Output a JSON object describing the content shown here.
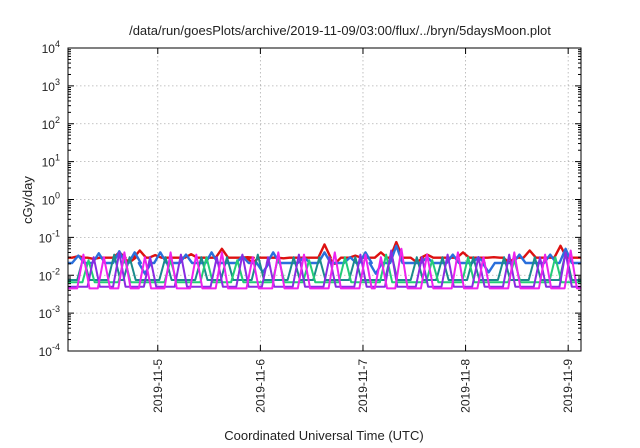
{
  "chart_data": {
    "type": "line",
    "title": "/data/run/goesPlots/archive/2019-11-09/03:00/flux/../bryn/5daysMoon.plot",
    "xlabel": "Coordinated Universal Time (UTC)",
    "ylabel": "cGy/day",
    "yscale": "log",
    "ylim": [
      0.0001,
      10000
    ],
    "yticks": [
      {
        "base": "10",
        "exp": "-4",
        "value": 0.0001
      },
      {
        "base": "10",
        "exp": "-3",
        "value": 0.001
      },
      {
        "base": "10",
        "exp": "-2",
        "value": 0.01
      },
      {
        "base": "10",
        "exp": "-1",
        "value": 0.1
      },
      {
        "base": "10",
        "exp": "0",
        "value": 1
      },
      {
        "base": "10",
        "exp": "1",
        "value": 10
      },
      {
        "base": "10",
        "exp": "2",
        "value": 100
      },
      {
        "base": "10",
        "exp": "3",
        "value": 1000
      },
      {
        "base": "10",
        "exp": "4",
        "value": 10000
      }
    ],
    "xlim": [
      "2019-11-04T03:00",
      "2019-11-09T03:00"
    ],
    "xticks": [
      {
        "label": "2019-11-5",
        "date": "2019-11-05T00:00"
      },
      {
        "label": "2019-11-6",
        "date": "2019-11-06T00:00"
      },
      {
        "label": "2019-11-7",
        "date": "2019-11-07T00:00"
      },
      {
        "label": "2019-11-8",
        "date": "2019-11-08T00:00"
      },
      {
        "label": "2019-11-9",
        "date": "2019-11-09T00:00"
      }
    ],
    "grid": true,
    "legend": "none",
    "series": [
      {
        "color": "#dd1111",
        "baseline": 0.029,
        "spikes": [
          [
            0.02,
            0.032
          ],
          [
            0.05,
            0.027
          ],
          [
            0.1,
            0.04
          ],
          [
            0.14,
            0.045
          ],
          [
            0.17,
            0.034
          ],
          [
            0.24,
            0.036
          ],
          [
            0.3,
            0.05
          ],
          [
            0.35,
            0.03
          ],
          [
            0.42,
            0.028
          ],
          [
            0.5,
            0.065
          ],
          [
            0.56,
            0.033
          ],
          [
            0.61,
            0.04
          ],
          [
            0.64,
            0.075
          ],
          [
            0.7,
            0.035
          ],
          [
            0.77,
            0.04
          ],
          [
            0.83,
            0.03
          ],
          [
            0.9,
            0.045
          ],
          [
            0.96,
            0.06
          ]
        ],
        "dips": [
          [
            0.12,
            0.022
          ],
          [
            0.36,
            0.021
          ],
          [
            0.52,
            0.02
          ],
          [
            0.68,
            0.022
          ],
          [
            0.86,
            0.022
          ]
        ]
      },
      {
        "color": "#2a6fdb",
        "baseline": 0.021,
        "spikes": [
          [
            0.02,
            0.033
          ],
          [
            0.06,
            0.038
          ],
          [
            0.1,
            0.043
          ],
          [
            0.13,
            0.04
          ],
          [
            0.18,
            0.04
          ],
          [
            0.23,
            0.035
          ],
          [
            0.28,
            0.04
          ],
          [
            0.34,
            0.032
          ],
          [
            0.4,
            0.04
          ],
          [
            0.46,
            0.03
          ],
          [
            0.5,
            0.04
          ],
          [
            0.55,
            0.03
          ],
          [
            0.58,
            0.04
          ],
          [
            0.64,
            0.06
          ],
          [
            0.7,
            0.03
          ],
          [
            0.75,
            0.035
          ],
          [
            0.8,
            0.03
          ],
          [
            0.88,
            0.035
          ],
          [
            0.94,
            0.035
          ],
          [
            0.97,
            0.05
          ]
        ],
        "dips": [
          [
            0.15,
            0.011
          ],
          [
            0.38,
            0.012
          ],
          [
            0.6,
            0.011
          ],
          [
            0.82,
            0.012
          ]
        ]
      },
      {
        "color": "#1a8b8b",
        "baseline": 0.0075,
        "spikes": [
          [
            0.03,
            0.03
          ],
          [
            0.09,
            0.035
          ],
          [
            0.12,
            0.03
          ],
          [
            0.19,
            0.03
          ],
          [
            0.26,
            0.03
          ],
          [
            0.31,
            0.03
          ],
          [
            0.37,
            0.035
          ],
          [
            0.44,
            0.03
          ],
          [
            0.49,
            0.03
          ],
          [
            0.56,
            0.03
          ],
          [
            0.63,
            0.04
          ],
          [
            0.68,
            0.03
          ],
          [
            0.73,
            0.03
          ],
          [
            0.79,
            0.03
          ],
          [
            0.85,
            0.03
          ],
          [
            0.91,
            0.03
          ],
          [
            0.97,
            0.04
          ]
        ],
        "dips": []
      },
      {
        "color": "#22cc77",
        "baseline": 0.0065,
        "spikes": [
          [
            0.04,
            0.025
          ],
          [
            0.11,
            0.03
          ],
          [
            0.2,
            0.025
          ],
          [
            0.27,
            0.03
          ],
          [
            0.33,
            0.025
          ],
          [
            0.41,
            0.03
          ],
          [
            0.47,
            0.025
          ],
          [
            0.54,
            0.03
          ],
          [
            0.62,
            0.035
          ],
          [
            0.71,
            0.025
          ],
          [
            0.78,
            0.03
          ],
          [
            0.87,
            0.025
          ],
          [
            0.95,
            0.03
          ]
        ],
        "dips": []
      },
      {
        "color": "#8a2be2",
        "baseline": 0.005,
        "spikes": [
          [
            0.05,
            0.03
          ],
          [
            0.1,
            0.04
          ],
          [
            0.16,
            0.03
          ],
          [
            0.22,
            0.035
          ],
          [
            0.29,
            0.03
          ],
          [
            0.34,
            0.035
          ],
          [
            0.39,
            0.03
          ],
          [
            0.45,
            0.035
          ],
          [
            0.51,
            0.03
          ],
          [
            0.57,
            0.035
          ],
          [
            0.63,
            0.045
          ],
          [
            0.69,
            0.03
          ],
          [
            0.74,
            0.035
          ],
          [
            0.8,
            0.03
          ],
          [
            0.86,
            0.035
          ],
          [
            0.92,
            0.03
          ],
          [
            0.97,
            0.04
          ]
        ],
        "dips": []
      },
      {
        "color": "#ee22ee",
        "baseline": 0.0045,
        "spikes": [
          [
            0.03,
            0.035
          ],
          [
            0.07,
            0.03
          ],
          [
            0.11,
            0.04
          ],
          [
            0.15,
            0.03
          ],
          [
            0.2,
            0.04
          ],
          [
            0.25,
            0.035
          ],
          [
            0.3,
            0.04
          ],
          [
            0.36,
            0.03
          ],
          [
            0.41,
            0.04
          ],
          [
            0.46,
            0.035
          ],
          [
            0.52,
            0.04
          ],
          [
            0.58,
            0.035
          ],
          [
            0.61,
            0.03
          ],
          [
            0.65,
            0.05
          ],
          [
            0.7,
            0.035
          ],
          [
            0.76,
            0.04
          ],
          [
            0.81,
            0.03
          ],
          [
            0.87,
            0.04
          ],
          [
            0.93,
            0.035
          ],
          [
            0.98,
            0.045
          ]
        ],
        "dips": []
      }
    ]
  }
}
